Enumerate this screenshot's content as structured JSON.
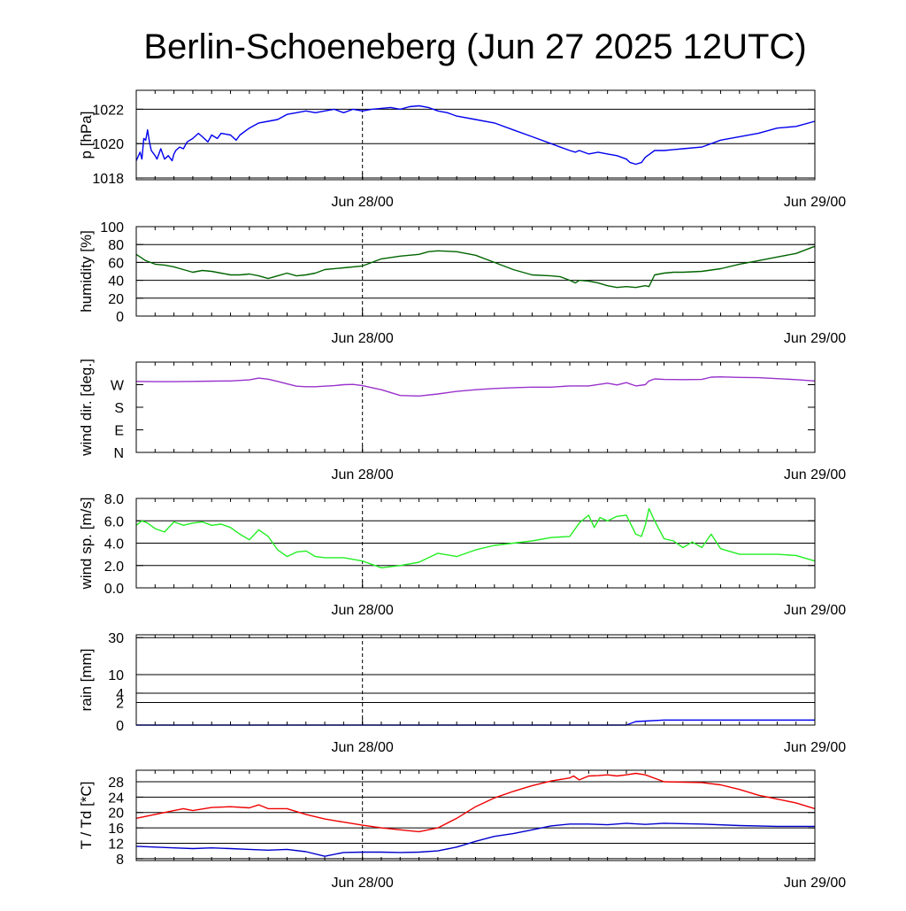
{
  "title": "Berlin-Schoeneberg (Jun 27 2025 12UTC)",
  "colors": {
    "pressure": "#0000ee",
    "humidity": "#006400",
    "wind_dir": "#9932cc",
    "wind_speed": "#22ee22",
    "rain": "#0000ee",
    "temperature": "#ee0000",
    "dewpoint": "#0000cc",
    "grid": "#000000"
  },
  "x_axis": {
    "unit": "hours since Jun 27 12UTC",
    "range": [
      0,
      36
    ],
    "ticks": [
      {
        "x": 12,
        "label": "Jun 28/00"
      },
      {
        "x": 36,
        "label": "Jun 29/00"
      }
    ],
    "minor_tick_every_hours": 1,
    "marker_x": 12
  },
  "chart_data": [
    {
      "id": "pressure",
      "type": "line",
      "ylabel": "p [hPa]",
      "ylim": [
        1017.9,
        1023.1
      ],
      "yticks": [
        {
          "v": 1018,
          "label": "1018"
        },
        {
          "v": 1020,
          "label": "1020"
        },
        {
          "v": 1022,
          "label": "1022"
        }
      ],
      "grid": [
        1018,
        1020,
        1022
      ],
      "series": [
        {
          "color_key": "pressure",
          "x": [
            0,
            0.2,
            0.3,
            0.4,
            0.5,
            0.6,
            0.7,
            0.8,
            1.0,
            1.1,
            1.2,
            1.3,
            1.5,
            1.7,
            1.9,
            2.0,
            2.1,
            2.3,
            2.5,
            2.7,
            3.0,
            3.3,
            3.5,
            3.8,
            4.0,
            4.3,
            4.5,
            5.0,
            5.3,
            5.5,
            6.0,
            6.5,
            7.0,
            7.5,
            8.0,
            8.5,
            9.0,
            9.5,
            10.0,
            10.5,
            11.0,
            11.5,
            12.0,
            12.5,
            13.0,
            13.5,
            14.0,
            14.5,
            15.0,
            15.5,
            16.0,
            16.5,
            17.0,
            18.0,
            19.0,
            20.0,
            21.0,
            22.0,
            23.0,
            23.3,
            23.5,
            24.0,
            24.5,
            25.0,
            25.5,
            26.0,
            26.2,
            26.5,
            26.8,
            27.0,
            27.5,
            28.0,
            29.0,
            30.0,
            31.0,
            32.0,
            33.0,
            34.0,
            35.0,
            36.0
          ],
          "y": [
            1019.0,
            1019.5,
            1019.1,
            1020.3,
            1020.2,
            1020.8,
            1020.1,
            1019.6,
            1019.3,
            1019.1,
            1019.4,
            1019.7,
            1019.1,
            1019.3,
            1019.0,
            1019.4,
            1019.6,
            1019.8,
            1019.7,
            1020.1,
            1020.3,
            1020.6,
            1020.4,
            1020.1,
            1020.5,
            1020.3,
            1020.6,
            1020.5,
            1020.2,
            1020.5,
            1020.9,
            1021.2,
            1021.3,
            1021.4,
            1021.7,
            1021.8,
            1021.9,
            1021.8,
            1021.9,
            1022.0,
            1021.8,
            1022.0,
            1021.9,
            1022.0,
            1022.05,
            1022.1,
            1022.0,
            1022.15,
            1022.2,
            1022.1,
            1021.9,
            1021.8,
            1021.6,
            1021.4,
            1021.2,
            1020.8,
            1020.4,
            1020.0,
            1019.6,
            1019.5,
            1019.6,
            1019.4,
            1019.5,
            1019.4,
            1019.3,
            1019.1,
            1018.9,
            1018.8,
            1018.9,
            1019.2,
            1019.6,
            1019.6,
            1019.7,
            1019.8,
            1020.2,
            1020.4,
            1020.6,
            1020.9,
            1021.0,
            1021.3
          ]
        }
      ]
    },
    {
      "id": "humidity",
      "type": "line",
      "ylabel": "humidity [%]",
      "ylim": [
        0,
        100
      ],
      "yticks": [
        {
          "v": 0,
          "label": "0"
        },
        {
          "v": 20,
          "label": "20"
        },
        {
          "v": 40,
          "label": "40"
        },
        {
          "v": 60,
          "label": "60"
        },
        {
          "v": 80,
          "label": "80"
        },
        {
          "v": 100,
          "label": "100"
        }
      ],
      "grid": [
        20,
        40,
        60,
        80
      ],
      "series": [
        {
          "color_key": "humidity",
          "x": [
            0,
            0.5,
            1.0,
            1.5,
            2.0,
            2.5,
            3.0,
            3.5,
            4.0,
            4.5,
            5.0,
            5.5,
            6.0,
            6.5,
            7.0,
            7.5,
            8.0,
            8.5,
            9.0,
            9.5,
            10.0,
            11.0,
            12.0,
            13.0,
            14.0,
            15.0,
            15.5,
            16.0,
            17.0,
            18.0,
            19.0,
            20.0,
            21.0,
            22.0,
            22.5,
            23.0,
            23.3,
            23.5,
            24.0,
            24.5,
            25.0,
            25.5,
            26.0,
            26.5,
            27.0,
            27.2,
            27.5,
            28.0,
            28.5,
            29.0,
            30.0,
            31.0,
            32.0,
            33.0,
            34.0,
            35.0,
            36.0
          ],
          "y": [
            69,
            62,
            58,
            57,
            55,
            52,
            49,
            51,
            50,
            48,
            46,
            46,
            47,
            45,
            42,
            45,
            48,
            45,
            46,
            48,
            52,
            54,
            56,
            64,
            67,
            69,
            72,
            73,
            72,
            68,
            60,
            52,
            46,
            45,
            44,
            40,
            37,
            40,
            39,
            37,
            34,
            32,
            33,
            32,
            34,
            33,
            46,
            48,
            49,
            49,
            50,
            53,
            58,
            62,
            66,
            70,
            78
          ]
        }
      ]
    },
    {
      "id": "wind_direction",
      "type": "line",
      "ylabel": "wind dir. [deg.]",
      "ylim": [
        0,
        360
      ],
      "yticks": [
        {
          "v": 0,
          "label": "N"
        },
        {
          "v": 90,
          "label": "E"
        },
        {
          "v": 180,
          "label": "S"
        },
        {
          "v": 270,
          "label": "W"
        }
      ],
      "grid": [],
      "series": [
        {
          "color_key": "wind_dir",
          "x": [
            0,
            1,
            2,
            3,
            4,
            5,
            6,
            6.5,
            7,
            7.5,
            8,
            8.5,
            9,
            9.5,
            10,
            10.5,
            11,
            11.5,
            12,
            12.5,
            13,
            14,
            15,
            16,
            17,
            18,
            19,
            20,
            21,
            22,
            23,
            24,
            25,
            25.5,
            26,
            26.5,
            27,
            27.2,
            27.5,
            28,
            29,
            30,
            30.5,
            31,
            32,
            33,
            34,
            35,
            36
          ],
          "y": [
            283,
            282,
            282,
            283,
            284,
            285,
            289,
            296,
            292,
            283,
            273,
            264,
            262,
            262,
            264,
            266,
            270,
            271,
            266,
            258,
            250,
            227,
            225,
            233,
            243,
            250,
            255,
            258,
            260,
            260,
            265,
            265,
            276,
            269,
            278,
            265,
            270,
            285,
            293,
            291,
            290,
            291,
            300,
            301,
            299,
            298,
            294,
            290,
            285
          ]
        }
      ]
    },
    {
      "id": "wind_speed",
      "type": "line",
      "ylabel": "wind sp. [m/s]",
      "ylim": [
        0,
        8
      ],
      "yticks": [
        {
          "v": 0,
          "label": "0.0"
        },
        {
          "v": 2,
          "label": "2.0"
        },
        {
          "v": 4,
          "label": "4.0"
        },
        {
          "v": 6,
          "label": "6.0"
        },
        {
          "v": 8,
          "label": "8.0"
        }
      ],
      "grid": [
        2,
        4,
        6
      ],
      "series": [
        {
          "color_key": "wind_speed",
          "x": [
            0,
            0.3,
            0.6,
            1.0,
            1.5,
            2.0,
            2.5,
            3.0,
            3.5,
            4.0,
            4.5,
            5.0,
            5.5,
            6.0,
            6.5,
            7.0,
            7.5,
            8.0,
            8.5,
            9.0,
            9.5,
            10.0,
            11.0,
            12.0,
            13.0,
            14.0,
            15.0,
            16.0,
            17.0,
            18.0,
            19.0,
            20.0,
            21.0,
            22.0,
            23.0,
            23.5,
            24.0,
            24.3,
            24.6,
            25.0,
            25.5,
            26.0,
            26.5,
            26.8,
            27.0,
            27.2,
            27.5,
            28.0,
            28.5,
            29.0,
            29.5,
            30.0,
            30.5,
            31.0,
            32.0,
            33.0,
            34.0,
            35.0,
            36.0
          ],
          "y": [
            5.6,
            6.0,
            5.8,
            5.3,
            5.0,
            5.9,
            5.6,
            5.8,
            5.9,
            5.6,
            5.7,
            5.4,
            4.8,
            4.3,
            5.2,
            4.6,
            3.4,
            2.8,
            3.2,
            3.3,
            2.8,
            2.7,
            2.7,
            2.4,
            1.8,
            2.0,
            2.3,
            3.1,
            2.8,
            3.4,
            3.8,
            4.0,
            4.2,
            4.5,
            4.6,
            5.8,
            6.5,
            5.4,
            6.3,
            6.0,
            6.4,
            6.5,
            4.8,
            4.6,
            5.6,
            7.1,
            6.0,
            4.4,
            4.2,
            3.6,
            4.1,
            3.6,
            4.8,
            3.5,
            3.0,
            3.0,
            3.0,
            2.9,
            2.4
          ]
        }
      ]
    },
    {
      "id": "rain",
      "type": "line",
      "ylabel": "rain [mm]",
      "scale": "sqrt",
      "ylim": [
        0,
        32
      ],
      "yticks": [
        {
          "v": 0,
          "label": "0"
        },
        {
          "v": 2,
          "label": "2"
        },
        {
          "v": 4,
          "label": "4"
        },
        {
          "v": 10,
          "label": "10"
        },
        {
          "v": 30,
          "label": "30"
        }
      ],
      "grid": [
        2,
        4,
        10,
        30
      ],
      "series": [
        {
          "color_key": "rain",
          "x": [
            0,
            26,
            26.5,
            28,
            36
          ],
          "y": [
            0,
            0,
            0.05,
            0.1,
            0.1
          ]
        }
      ]
    },
    {
      "id": "temperature",
      "type": "line",
      "ylabel": "T / Td [*C]",
      "ylim": [
        7.5,
        31
      ],
      "yticks": [
        {
          "v": 8,
          "label": "8"
        },
        {
          "v": 12,
          "label": "12"
        },
        {
          "v": 16,
          "label": "16"
        },
        {
          "v": 20,
          "label": "20"
        },
        {
          "v": 24,
          "label": "24"
        },
        {
          "v": 28,
          "label": "28"
        }
      ],
      "grid": [
        8,
        12,
        16,
        20,
        24,
        28
      ],
      "series": [
        {
          "color_key": "temperature",
          "x": [
            0,
            1,
            2,
            2.5,
            3,
            4,
            5,
            6,
            6.5,
            7,
            8,
            9,
            10,
            11,
            12,
            13,
            14,
            15,
            16,
            17,
            18,
            19,
            20,
            21,
            22,
            23,
            23.2,
            23.5,
            24,
            24.5,
            25,
            25.5,
            26,
            26.5,
            27,
            28,
            30,
            31,
            32,
            33,
            34,
            35,
            36
          ],
          "y": [
            18.5,
            19.5,
            20.5,
            21.0,
            20.5,
            21.3,
            21.5,
            21.2,
            22.0,
            21.0,
            21.0,
            19.5,
            18.3,
            17.5,
            16.7,
            16.0,
            15.5,
            15.0,
            16.0,
            18.5,
            21.5,
            23.8,
            25.5,
            27.0,
            28.2,
            29.0,
            29.5,
            28.5,
            29.5,
            29.6,
            29.8,
            29.5,
            29.8,
            30.2,
            29.8,
            28.0,
            27.8,
            27.2,
            26.0,
            24.5,
            23.5,
            22.5,
            21.0
          ]
        },
        {
          "color_key": "dewpoint",
          "x": [
            0,
            1,
            2,
            3,
            4,
            5,
            6,
            7,
            8,
            9,
            10,
            11,
            12,
            13,
            14,
            15,
            16,
            17,
            18,
            19,
            20,
            21,
            22,
            23,
            24,
            25,
            26,
            27,
            28,
            30,
            32,
            34,
            36
          ],
          "y": [
            11.2,
            11.0,
            10.8,
            10.6,
            10.8,
            10.6,
            10.4,
            10.2,
            10.4,
            9.8,
            8.6,
            9.6,
            9.7,
            9.7,
            9.6,
            9.7,
            10.0,
            11.0,
            12.5,
            13.8,
            14.5,
            15.5,
            16.5,
            17.0,
            17.0,
            16.8,
            17.2,
            16.9,
            17.2,
            17.0,
            16.6,
            16.4,
            16.4
          ]
        }
      ]
    }
  ]
}
